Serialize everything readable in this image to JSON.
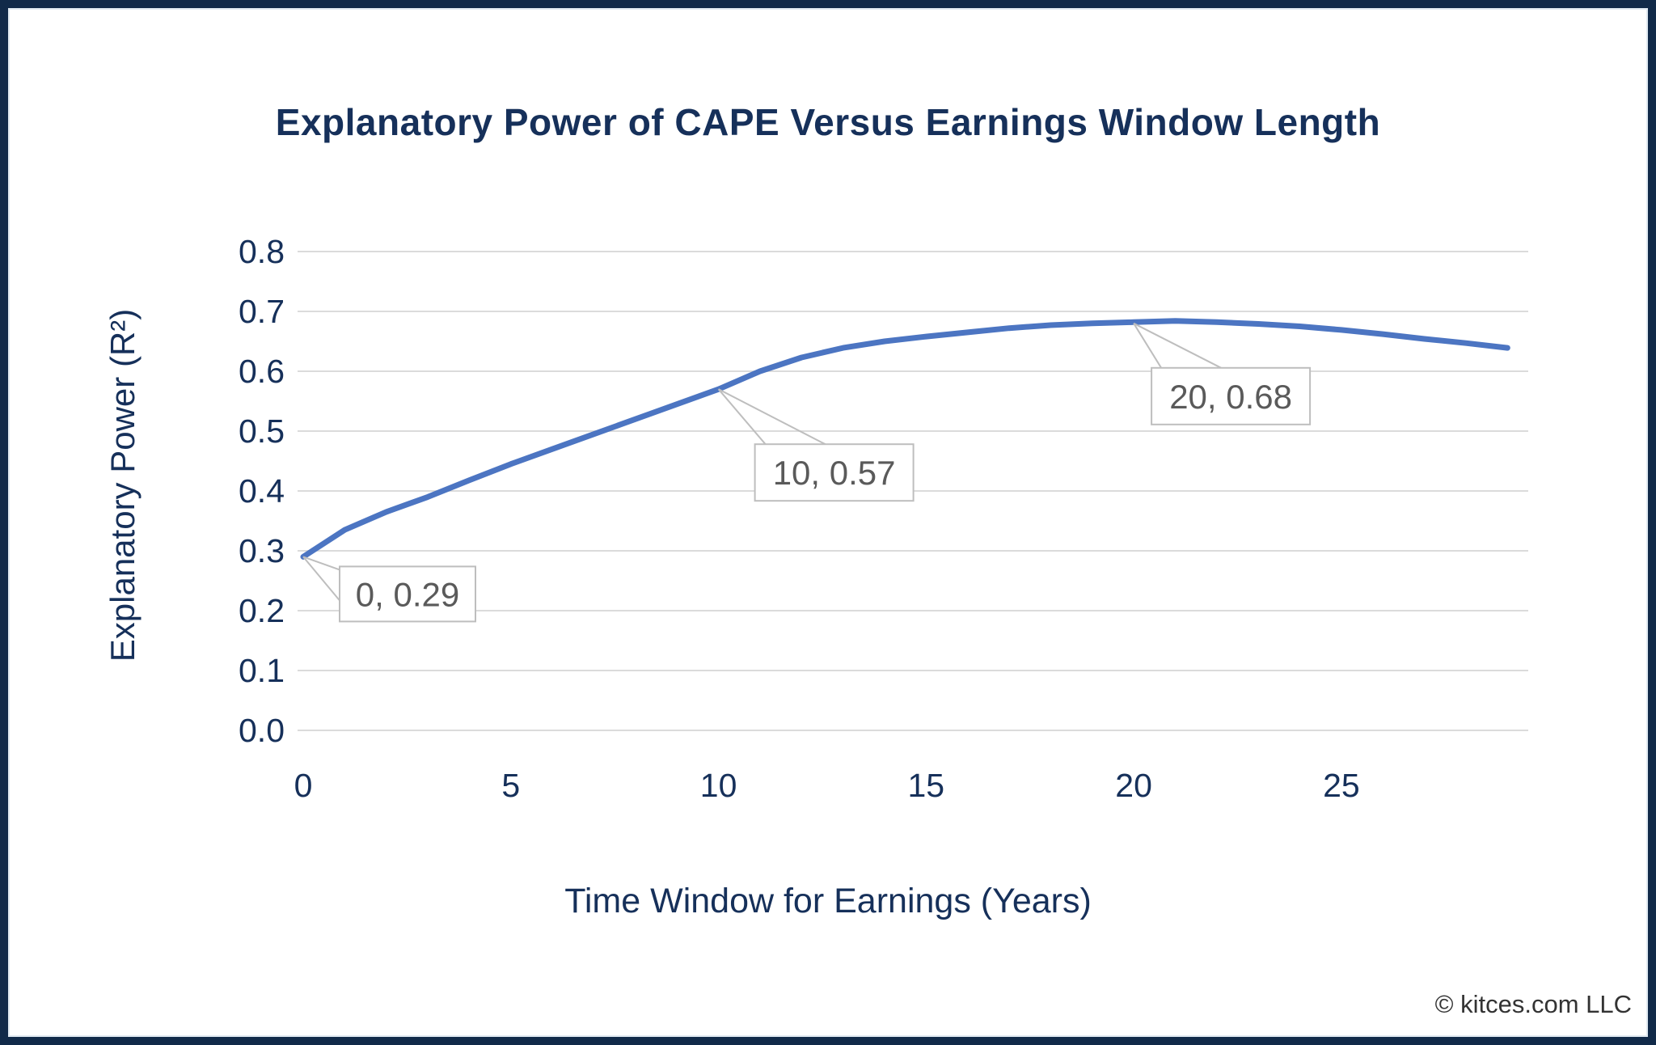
{
  "colors": {
    "navy_text": "#16305A",
    "frame_border": "#112A49",
    "line": "#4C75C2",
    "grid": "#DBDBDB",
    "annotation_text": "#5A5A5A",
    "annotation_border": "#BEBEBE",
    "background": "#FFFFFF",
    "copyright_text": "#333333"
  },
  "chart_data": {
    "type": "line",
    "title": "Explanatory Power of CAPE Versus Earnings Window Length",
    "xlabel": "Time Window for Earnings (Years)",
    "ylabel": "Explanatory Power (R²)",
    "x": [
      0,
      1,
      2,
      3,
      4,
      5,
      6,
      7,
      8,
      9,
      10,
      11,
      12,
      13,
      14,
      15,
      16,
      17,
      18,
      19,
      20,
      21,
      22,
      23,
      24,
      25,
      26,
      27,
      28,
      29
    ],
    "series": [
      {
        "name": "Explanatory Power (R²)",
        "values": [
          0.29,
          0.335,
          0.365,
          0.39,
          0.418,
          0.445,
          0.47,
          0.495,
          0.52,
          0.545,
          0.57,
          0.6,
          0.623,
          0.639,
          0.65,
          0.658,
          0.665,
          0.672,
          0.677,
          0.68,
          0.682,
          0.684,
          0.682,
          0.679,
          0.675,
          0.669,
          0.662,
          0.654,
          0.647,
          0.639
        ]
      }
    ],
    "xticks": [
      0,
      5,
      10,
      15,
      20,
      25
    ],
    "yticks": [
      0.0,
      0.1,
      0.2,
      0.3,
      0.4,
      0.5,
      0.6,
      0.7,
      0.8
    ],
    "xlim": [
      0,
      29.5
    ],
    "ylim": [
      0.0,
      0.8
    ],
    "grid": "horizontal",
    "legend": "none",
    "annotations": [
      {
        "x": 0,
        "y": 0.29,
        "label": "0, 0.29"
      },
      {
        "x": 10,
        "y": 0.57,
        "label": "10, 0.57"
      },
      {
        "x": 20,
        "y": 0.68,
        "label": "20, 0.68"
      }
    ]
  },
  "footer": {
    "copyright": "© kitces.com LLC"
  }
}
